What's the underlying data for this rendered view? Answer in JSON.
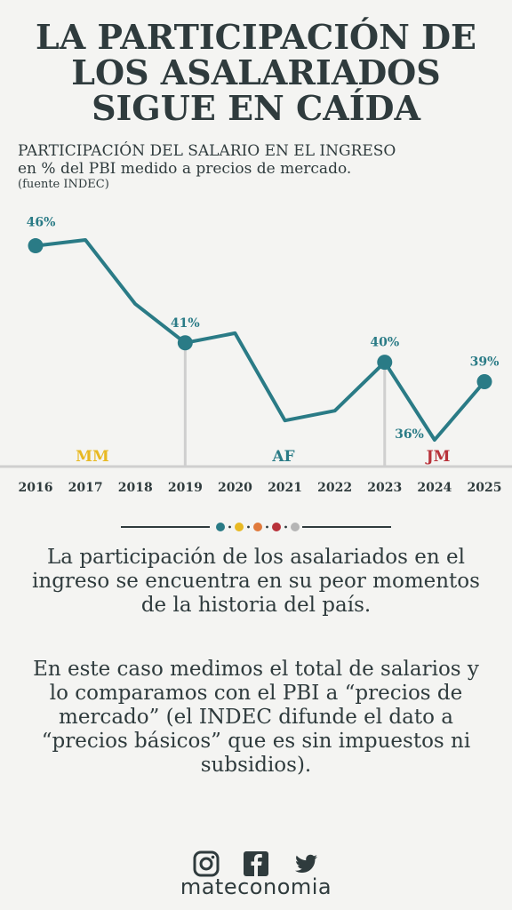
{
  "title": {
    "line1": "LA PARTICIPACIÓN DE",
    "line2": "LOS ASALARIADOS",
    "line3": "SIGUE EN CAÍDA"
  },
  "subtitle": {
    "line1": "PARTICIPACIÓN DEL SALARIO EN EL INGRESO",
    "line2": "en % del PBI medido a precios de mercado.",
    "source": "(fuente INDEC)"
  },
  "chart_data": {
    "type": "line",
    "x": [
      2016,
      2017,
      2018,
      2019,
      2020,
      2021,
      2022,
      2023,
      2024,
      2025
    ],
    "series": [
      {
        "values": [
          46,
          46.3,
          43,
          41,
          41.5,
          37,
          37.5,
          40,
          36,
          39
        ],
        "color": "#2a7b86"
      }
    ],
    "point_labels": [
      {
        "x": 2016,
        "text": "46%"
      },
      {
        "x": 2019,
        "text": "41%"
      },
      {
        "x": 2023,
        "text": "40%"
      },
      {
        "x": 2024,
        "text": "36%"
      },
      {
        "x": 2025,
        "text": "39%"
      }
    ],
    "marked_points": [
      2016,
      2019,
      2023,
      2025
    ],
    "periods": [
      {
        "label": "MM",
        "color": "#e8b923"
      },
      {
        "label": "AF",
        "color": "#2a7b86"
      },
      {
        "label": "JM",
        "color": "#b8323a"
      }
    ],
    "period_separators": [
      2019,
      2023
    ],
    "xlabel": "",
    "ylabel": "",
    "grid": false,
    "label_color": "#2a7b86",
    "axis_color": "#cfcfcf"
  },
  "divider_dots": [
    "#2a7b86",
    "#e8b923",
    "#e07a3c",
    "#b8323a",
    "#b5b5b5"
  ],
  "body": {
    "p1": "La participación de los asalariados en el ingreso se encuentra en su peor momentos de la historia del país.",
    "p2": "En este caso medimos el total de salarios y lo comparamos con el PBI a “precios de mercado” (el INDEC difunde el dato a “precios básicos” que es sin impuestos ni subsidios)."
  },
  "social_icons": [
    "instagram-icon",
    "facebook-icon",
    "twitter-icon"
  ],
  "brand": "mateconomia"
}
